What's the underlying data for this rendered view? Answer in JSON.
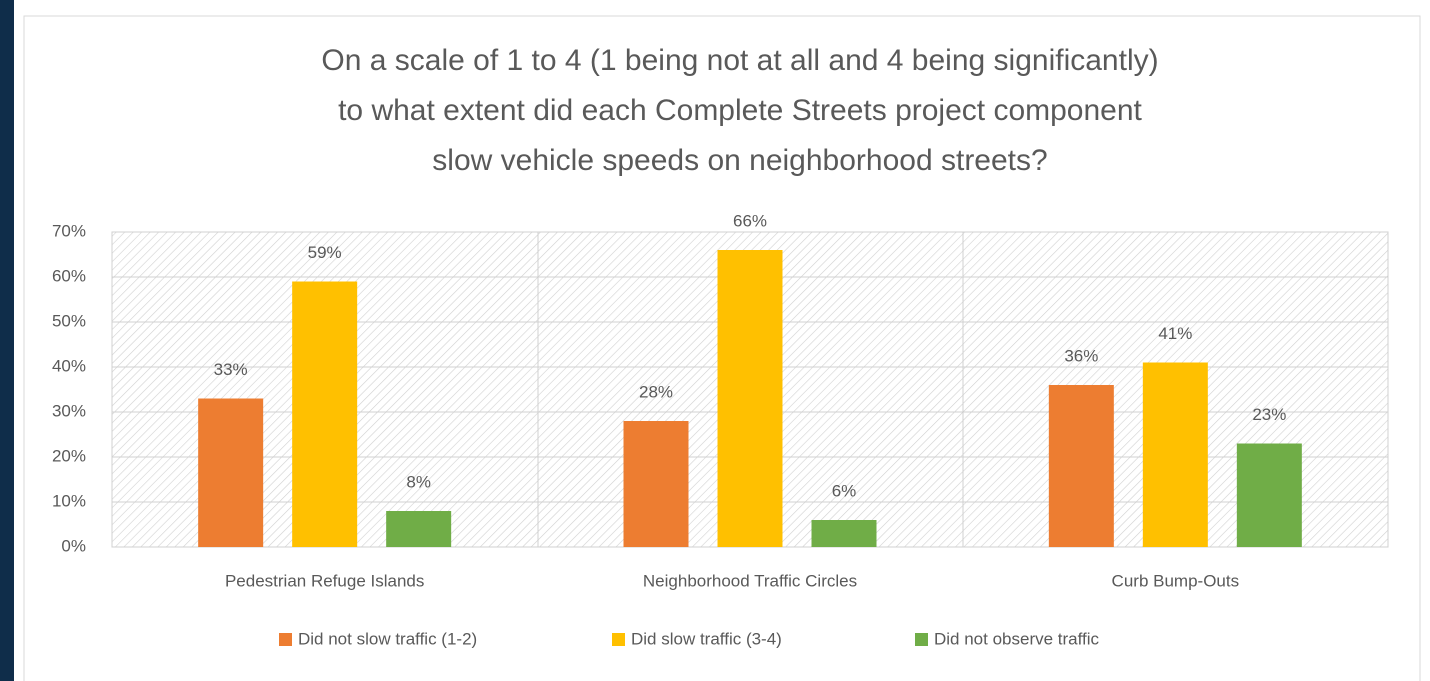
{
  "chart_data": {
    "type": "bar",
    "title": [
      "On a scale of 1 to 4 (1 being not at all and 4 being significantly)",
      "to what extent did each Complete Streets project component",
      "slow vehicle speeds on neighborhood streets?"
    ],
    "categories": [
      "Pedestrian Refuge Islands",
      "Neighborhood Traffic Circles",
      "Curb Bump-Outs"
    ],
    "series": [
      {
        "name": "Did not slow traffic (1-2)",
        "color": "#ed7d31",
        "values": [
          33,
          28,
          36
        ],
        "value_labels": [
          "33%",
          "28%",
          "36%"
        ]
      },
      {
        "name": "Did slow traffic (3-4)",
        "color": "#ffc000",
        "values": [
          59,
          66,
          41
        ],
        "value_labels": [
          "59%",
          "66%",
          "41%"
        ]
      },
      {
        "name": "Did not observe traffic",
        "color": "#70ad47",
        "values": [
          8,
          6,
          23
        ],
        "value_labels": [
          "8%",
          "6%",
          "23%"
        ]
      }
    ],
    "ylim": [
      0,
      70
    ],
    "yticks": [
      {
        "value": 0,
        "label": "0%"
      },
      {
        "value": 10,
        "label": "10%"
      },
      {
        "value": 20,
        "label": "20%"
      },
      {
        "value": 30,
        "label": "30%"
      },
      {
        "value": 40,
        "label": "40%"
      },
      {
        "value": 50,
        "label": "50%"
      },
      {
        "value": 60,
        "label": "60%"
      },
      {
        "value": 70,
        "label": "70%"
      }
    ],
    "grid": true,
    "legend": "bottom"
  }
}
